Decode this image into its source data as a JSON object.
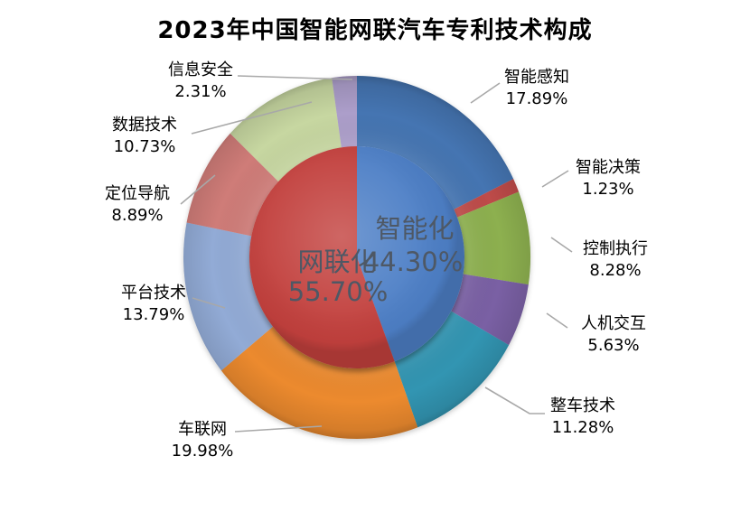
{
  "title": "2023年中国智能网联汽车专利技术构成",
  "chart_data": {
    "type": "pie",
    "subtype": "donut-ring-with-inner-pie",
    "title": "2023年中国智能网联汽车专利技术构成",
    "direction": "clockwise",
    "start_angle_deg": 0,
    "legend_position": "none",
    "grid": false,
    "label_format": "{name} {value}%",
    "inner_series": {
      "name": "inner-pie",
      "slices": [
        {
          "label": "智能化",
          "value": 44.3,
          "color": "#4D7FC6"
        },
        {
          "label": "网联化",
          "value": 55.7,
          "color": "#C2413C"
        }
      ]
    },
    "outer_series": {
      "name": "outer-ring",
      "slices": [
        {
          "label": "智能感知",
          "value": 17.89,
          "color": "#4475B2"
        },
        {
          "label": "智能决策",
          "value": 1.23,
          "color": "#BE4B48"
        },
        {
          "label": "控制执行",
          "value": 8.28,
          "color": "#8DB04F"
        },
        {
          "label": "人机交互",
          "value": 5.63,
          "color": "#7A60A4"
        },
        {
          "label": "整车技术",
          "value": 11.28,
          "color": "#3095B2"
        },
        {
          "label": "车联网",
          "value": 19.98,
          "color": "#EC8A2F"
        },
        {
          "label": "平台技术",
          "value": 13.79,
          "color": "#92ABD6"
        },
        {
          "label": "定位导航",
          "value": 8.89,
          "color": "#CF7B78"
        },
        {
          "label": "数据技术",
          "value": 10.73,
          "color": "#C7D7A1"
        },
        {
          "label": "信息安全",
          "value": 2.31,
          "color": "#AC9ECA"
        }
      ]
    },
    "colors": {
      "background": "#FFFFFF",
      "label_text": "#000000",
      "center_label_text": "#4E5865",
      "leader_line": "#A8A8A8"
    }
  }
}
